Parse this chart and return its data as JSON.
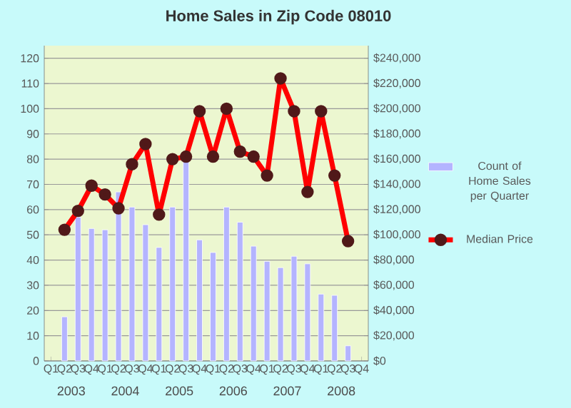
{
  "chart_data": {
    "type": "bar",
    "title": "Home Sales in Zip Code 08010",
    "categories": [
      "Q1",
      "Q2",
      "Q3",
      "Q4",
      "Q1",
      "Q2",
      "Q3",
      "Q4",
      "Q1",
      "Q2",
      "Q3",
      "Q4",
      "Q1",
      "Q2",
      "Q3",
      "Q4",
      "Q1",
      "Q2",
      "Q3",
      "Q4",
      "Q1",
      "Q2",
      "Q3",
      "Q4"
    ],
    "annotations": [
      "2003",
      "2004",
      "2005",
      "2006",
      "2007",
      "2008"
    ],
    "series": [
      {
        "name": "Count of Home Sales per Quarter",
        "color": "#b4b4ff",
        "values": [
          null,
          17.5,
          57,
          52.5,
          52,
          67,
          61,
          54,
          45,
          61,
          80,
          48,
          43,
          61,
          55,
          45.5,
          39.5,
          37,
          41.5,
          38.5,
          26.5,
          26,
          6,
          null
        ]
      },
      {
        "name": "Median Price",
        "type": "line",
        "axis": "y2",
        "color": "#ff0000",
        "values": [
          null,
          104000,
          119000,
          139000,
          132000,
          121000,
          156000,
          172000,
          116000,
          160000,
          162000,
          198000,
          162000,
          200000,
          166000,
          162000,
          147000,
          224000,
          198000,
          134000,
          198000,
          147000,
          95000,
          null
        ]
      }
    ],
    "ylim": [
      0,
      125
    ],
    "yticks": [
      0,
      10,
      20,
      30,
      40,
      50,
      60,
      70,
      80,
      90,
      100,
      110,
      120
    ],
    "y2lim": [
      0,
      250000
    ],
    "y2ticks": [
      {
        "value": 0,
        "label": "$0"
      },
      {
        "value": 20000,
        "label": "$20,000"
      },
      {
        "value": 40000,
        "label": "$40,000"
      },
      {
        "value": 60000,
        "label": "$60,000"
      },
      {
        "value": 80000,
        "label": "$80,000"
      },
      {
        "value": 100000,
        "label": "$100,000"
      },
      {
        "value": 120000,
        "label": "$120,000"
      },
      {
        "value": 140000,
        "label": "$140,000"
      },
      {
        "value": 160000,
        "label": "$160,000"
      },
      {
        "value": 180000,
        "label": "$180,000"
      },
      {
        "value": 200000,
        "label": "$200,000"
      },
      {
        "value": 220000,
        "label": "$220,000"
      },
      {
        "value": 240000,
        "label": "$240,000"
      }
    ],
    "grid": "y",
    "legend": "right",
    "marker": "circle",
    "line_style": "solid"
  }
}
